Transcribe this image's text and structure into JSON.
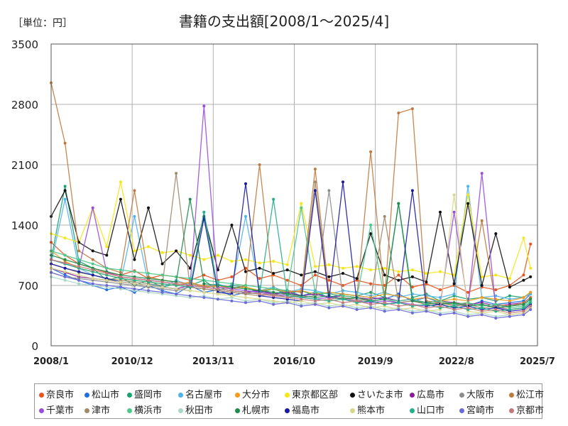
{
  "unit_label": "［単位：円］",
  "chart_data": {
    "type": "line",
    "title": "書籍の支出額[2008/1～2025/4]",
    "xlabel": "",
    "ylabel": "",
    "ylim": [
      0,
      3500
    ],
    "yticks": [
      0,
      700,
      1400,
      2100,
      2800,
      3500
    ],
    "xlim": [
      "2008/1",
      "2025/7"
    ],
    "xticks": [
      "2008/1",
      "2010/12",
      "2013/11",
      "2016/10",
      "2019/9",
      "2022/8",
      "2025/7"
    ],
    "grid": true,
    "legend_position": "bottom",
    "x": [
      "2008/1",
      "2008/7",
      "2009/1",
      "2009/7",
      "2010/1",
      "2010/7",
      "2011/1",
      "2011/7",
      "2012/1",
      "2012/7",
      "2013/1",
      "2013/7",
      "2014/1",
      "2014/7",
      "2015/1",
      "2015/7",
      "2016/1",
      "2016/7",
      "2017/1",
      "2017/7",
      "2018/1",
      "2018/7",
      "2019/1",
      "2019/7",
      "2020/1",
      "2020/7",
      "2021/1",
      "2021/7",
      "2022/1",
      "2022/7",
      "2023/1",
      "2023/7",
      "2024/1",
      "2024/7",
      "2025/1",
      "2025/4"
    ],
    "series": [
      {
        "name": "奈良市",
        "color": "#e8541e",
        "values": [
          1200,
          1050,
          950,
          900,
          850,
          820,
          870,
          780,
          820,
          800,
          760,
          820,
          760,
          800,
          900,
          780,
          820,
          760,
          700,
          820,
          760,
          700,
          760,
          720,
          700,
          820,
          680,
          720,
          650,
          700,
          620,
          680,
          650,
          700,
          820,
          1180
        ]
      },
      {
        "name": "松山市",
        "color": "#1f6fe0",
        "values": [
          900,
          820,
          760,
          700,
          650,
          680,
          620,
          700,
          640,
          600,
          700,
          620,
          650,
          580,
          620,
          650,
          600,
          640,
          580,
          620,
          560,
          600,
          580,
          560,
          540,
          600,
          520,
          560,
          500,
          480,
          460,
          520,
          480,
          500,
          520,
          600
        ]
      },
      {
        "name": "盛岡市",
        "color": "#1aa36f",
        "values": [
          1000,
          1850,
          980,
          900,
          760,
          800,
          700,
          760,
          680,
          720,
          700,
          760,
          640,
          700,
          680,
          620,
          660,
          600,
          640,
          580,
          620,
          600,
          580,
          620,
          560,
          1650,
          560,
          600,
          520,
          580,
          540,
          560,
          520,
          580,
          560,
          620
        ]
      },
      {
        "name": "名古屋市",
        "color": "#4fb3f0",
        "values": [
          950,
          1700,
          900,
          820,
          780,
          740,
          1500,
          720,
          680,
          760,
          700,
          680,
          720,
          660,
          1500,
          640,
          680,
          620,
          660,
          640,
          600,
          640,
          620,
          580,
          620,
          560,
          600,
          580,
          560,
          600,
          1850,
          560,
          580,
          540,
          560,
          600
        ]
      },
      {
        "name": "大分市",
        "color": "#f39c1a",
        "values": [
          1100,
          980,
          900,
          860,
          820,
          780,
          760,
          740,
          720,
          700,
          740,
          680,
          700,
          660,
          680,
          640,
          660,
          620,
          640,
          600,
          620,
          600,
          580,
          560,
          600,
          580,
          540,
          560,
          520,
          540,
          520,
          560,
          540,
          520,
          560,
          620
        ]
      },
      {
        "name": "東京都区部",
        "color": "#f5e61a",
        "values": [
          1300,
          1250,
          1200,
          1600,
          1150,
          1900,
          1100,
          1150,
          1080,
          1100,
          1050,
          1000,
          1050,
          980,
          1000,
          960,
          980,
          940,
          1650,
          920,
          940,
          900,
          920,
          880,
          900,
          860,
          880,
          840,
          860,
          820,
          1750,
          800,
          820,
          780,
          1250,
          900
        ]
      },
      {
        "name": "さいたま市",
        "color": "#111111",
        "values": [
          1500,
          1800,
          1200,
          1100,
          1050,
          1700,
          1000,
          1600,
          950,
          1100,
          900,
          1500,
          880,
          1400,
          860,
          900,
          840,
          880,
          820,
          860,
          800,
          840,
          780,
          1300,
          820,
          760,
          800,
          740,
          1550,
          720,
          1650,
          700,
          1300,
          680,
          760,
          800
        ]
      },
      {
        "name": "広島市",
        "color": "#8a1c9c",
        "values": [
          900,
          850,
          800,
          780,
          760,
          740,
          720,
          700,
          680,
          660,
          700,
          680,
          660,
          640,
          620,
          640,
          600,
          620,
          580,
          600,
          560,
          580,
          560,
          540,
          560,
          520,
          540,
          500,
          520,
          500,
          480,
          500,
          460,
          480,
          500,
          560
        ]
      },
      {
        "name": "大阪市",
        "color": "#8c8c8c",
        "values": [
          850,
          800,
          780,
          760,
          740,
          720,
          700,
          680,
          660,
          640,
          680,
          660,
          640,
          620,
          600,
          620,
          580,
          600,
          560,
          580,
          1800,
          560,
          540,
          520,
          540,
          500,
          520,
          480,
          500,
          480,
          460,
          480,
          440,
          460,
          480,
          540
        ]
      },
      {
        "name": "松江市",
        "color": "#c07a3e",
        "values": [
          3050,
          2350,
          1100,
          1000,
          900,
          850,
          1800,
          800,
          760,
          740,
          720,
          700,
          680,
          660,
          700,
          2100,
          660,
          640,
          620,
          2050,
          600,
          580,
          560,
          2250,
          540,
          2700,
          2750,
          520,
          500,
          480,
          500,
          1450,
          480,
          460,
          500,
          560
        ]
      },
      {
        "name": "千葉市",
        "color": "#9b4be0",
        "values": [
          1000,
          950,
          900,
          1600,
          850,
          800,
          780,
          760,
          740,
          720,
          700,
          2780,
          680,
          660,
          640,
          620,
          600,
          580,
          560,
          540,
          560,
          540,
          520,
          500,
          520,
          500,
          480,
          460,
          480,
          1550,
          460,
          2000,
          440,
          420,
          440,
          500
        ]
      },
      {
        "name": "津市",
        "color": "#a08a6a",
        "values": [
          950,
          900,
          850,
          820,
          780,
          760,
          740,
          720,
          700,
          2000,
          680,
          660,
          640,
          620,
          600,
          580,
          600,
          560,
          580,
          1900,
          540,
          560,
          520,
          540,
          1500,
          500,
          520,
          480,
          500,
          460,
          480,
          440,
          460,
          420,
          440,
          500
        ]
      },
      {
        "name": "横浜市",
        "color": "#49c98a",
        "values": [
          1100,
          1050,
          1000,
          950,
          900,
          880,
          860,
          840,
          820,
          800,
          780,
          760,
          740,
          720,
          700,
          680,
          660,
          640,
          1600,
          620,
          600,
          580,
          560,
          1400,
          540,
          520,
          540,
          500,
          520,
          480,
          500,
          460,
          480,
          440,
          460,
          520
        ]
      },
      {
        "name": "秋田市",
        "color": "#a8d8c8",
        "values": [
          800,
          760,
          720,
          700,
          680,
          660,
          640,
          620,
          600,
          580,
          560,
          580,
          540,
          560,
          520,
          540,
          500,
          520,
          480,
          500,
          460,
          480,
          440,
          460,
          420,
          440,
          400,
          420,
          380,
          400,
          360,
          380,
          340,
          360,
          380,
          440
        ]
      },
      {
        "name": "札幌市",
        "color": "#1e8c4a",
        "values": [
          1050,
          1000,
          950,
          900,
          860,
          820,
          800,
          780,
          760,
          740,
          1700,
          720,
          700,
          680,
          660,
          640,
          620,
          600,
          580,
          560,
          580,
          540,
          560,
          520,
          540,
          1650,
          520,
          500,
          480,
          500,
          460,
          480,
          440,
          460,
          480,
          540
        ]
      },
      {
        "name": "福島市",
        "color": "#1a1aa0",
        "values": [
          950,
          900,
          860,
          820,
          780,
          740,
          720,
          700,
          680,
          660,
          640,
          1480,
          620,
          600,
          1880,
          580,
          560,
          540,
          520,
          1800,
          540,
          1900,
          500,
          520,
          480,
          500,
          1800,
          460,
          480,
          440,
          460,
          420,
          440,
          400,
          420,
          480
        ]
      },
      {
        "name": "熊本市",
        "color": "#d8d88a",
        "values": [
          900,
          860,
          820,
          780,
          760,
          740,
          720,
          700,
          680,
          660,
          640,
          620,
          600,
          580,
          560,
          540,
          520,
          500,
          520,
          480,
          500,
          460,
          480,
          440,
          460,
          420,
          440,
          400,
          420,
          1750,
          400,
          380,
          400,
          360,
          380,
          440
        ]
      },
      {
        "name": "山口市",
        "color": "#22b08a",
        "values": [
          1000,
          950,
          900,
          860,
          820,
          780,
          760,
          740,
          720,
          700,
          680,
          1550,
          660,
          640,
          620,
          600,
          1700,
          580,
          560,
          540,
          520,
          540,
          500,
          520,
          480,
          500,
          460,
          480,
          440,
          460,
          420,
          440,
          400,
          420,
          440,
          500
        ]
      },
      {
        "name": "宮崎市",
        "color": "#6a6ad8",
        "values": [
          850,
          800,
          760,
          720,
          700,
          680,
          660,
          640,
          620,
          600,
          580,
          560,
          540,
          520,
          500,
          520,
          480,
          500,
          460,
          480,
          440,
          460,
          420,
          440,
          400,
          420,
          380,
          400,
          360,
          380,
          340,
          360,
          320,
          340,
          360,
          420
        ]
      },
      {
        "name": "京都市",
        "color": "#c47878",
        "values": [
          1000,
          960,
          920,
          880,
          840,
          800,
          780,
          760,
          740,
          720,
          700,
          680,
          660,
          640,
          620,
          600,
          580,
          560,
          540,
          520,
          540,
          500,
          520,
          480,
          500,
          460,
          480,
          440,
          460,
          420,
          440,
          400,
          420,
          380,
          400,
          460
        ]
      }
    ]
  }
}
